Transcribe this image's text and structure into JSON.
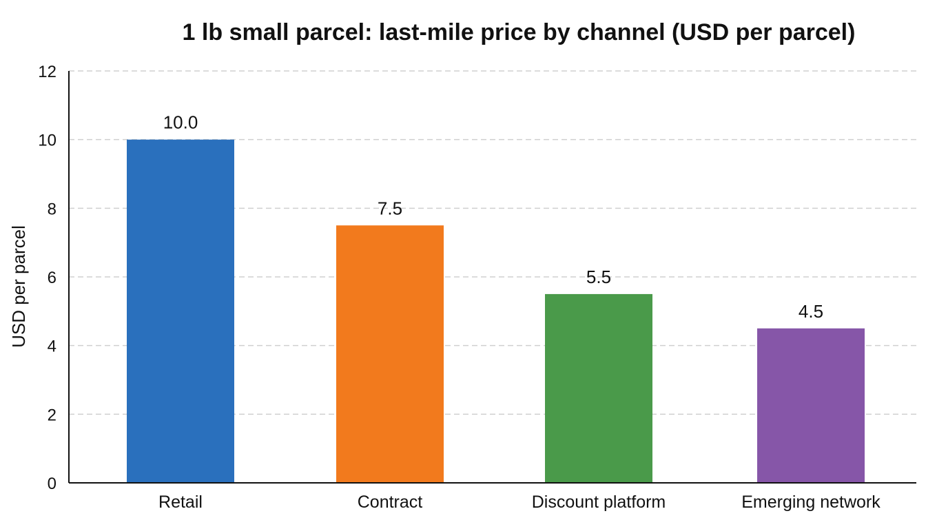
{
  "chart_data": {
    "type": "bar",
    "title": "1 lb small parcel: last-mile price by channel (USD per parcel)",
    "xlabel": "",
    "ylabel": "USD per parcel",
    "categories": [
      "Retail",
      "Contract",
      "Discount platform",
      "Emerging network"
    ],
    "values": [
      10.0,
      7.5,
      5.5,
      4.5
    ],
    "data_labels": [
      "10.0",
      "7.5",
      "5.5",
      "4.5"
    ],
    "colors": [
      "#2a70bd",
      "#f27a1d",
      "#4a9a4a",
      "#8656a8"
    ],
    "ylim": [
      0,
      12
    ],
    "yticks": [
      0,
      2,
      4,
      6,
      8,
      10,
      12
    ],
    "grid": true,
    "legend": "none"
  }
}
